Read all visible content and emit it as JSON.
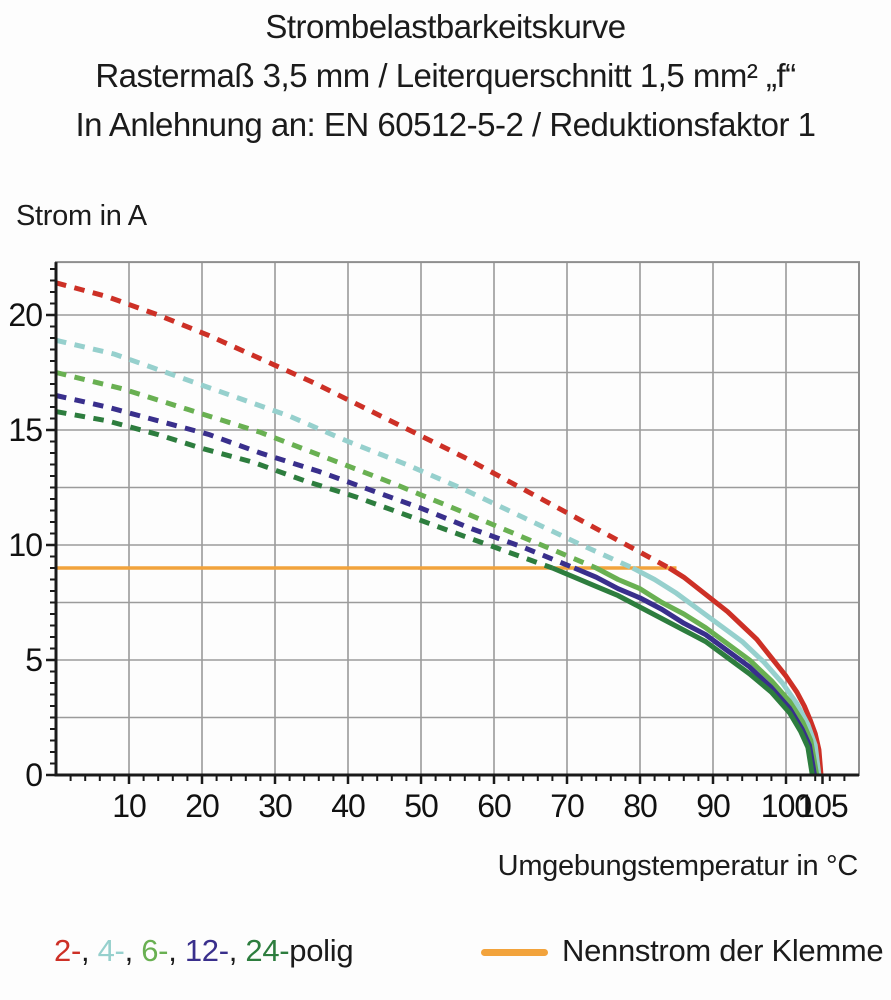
{
  "title": {
    "line1": "Strombelastbarkeitskurve",
    "line2": "Rastermaß 3,5 mm / Leiterquerschnitt 1,5 mm² „f“",
    "line3": "In Anlehnung an: EN 60512-5-2 / Reduktionsfaktor 1"
  },
  "axes": {
    "y_label": "Strom in A",
    "x_label": "Umgebungstemperatur in °C"
  },
  "legend": {
    "poles_parts": [
      {
        "text": "2-",
        "color": "#cd3026"
      },
      {
        "text": ", ",
        "color": "#1b1b1b"
      },
      {
        "text": "4-",
        "color": "#96d0cd"
      },
      {
        "text": ", ",
        "color": "#1b1b1b"
      },
      {
        "text": "6-",
        "color": "#69b052"
      },
      {
        "text": ", ",
        "color": "#1b1b1b"
      },
      {
        "text": "12-",
        "color": "#392f8c"
      },
      {
        "text": ", ",
        "color": "#1b1b1b"
      },
      {
        "text": "24-",
        "color": "#2d7d3e"
      },
      {
        "text": "polig",
        "color": "#1b1b1b"
      }
    ],
    "nominal_label": "Nennstrom der Klemme",
    "nominal_color": "#f2a33c"
  },
  "chart_data": {
    "type": "line",
    "title": "Strombelastbarkeitskurve",
    "xlabel": "Umgebungstemperatur in °C",
    "ylabel": "Strom in A",
    "xlim": [
      0,
      110
    ],
    "ylim": [
      0,
      22.3
    ],
    "x_major_ticks": [
      10,
      20,
      30,
      40,
      50,
      60,
      70,
      80,
      90,
      100,
      105
    ],
    "y_major_ticks": [
      0,
      5,
      10,
      15,
      20
    ],
    "x_gridlines": [
      10,
      20,
      30,
      40,
      50,
      60,
      70,
      80,
      90,
      100
    ],
    "y_gridlines": [
      2.5,
      5,
      7.5,
      10,
      12.5,
      15,
      17.5,
      20
    ],
    "x_minor_step": 2,
    "y_minor_step": 0.5,
    "grid_on": true,
    "grid_color": "#9b9b9b",
    "frame_color": "#8f8f8f",
    "axis_color": "#1a1a1a",
    "nominal_current": {
      "label": "Nennstrom der Klemme",
      "value": 9,
      "x_start": 0,
      "x_end": 85,
      "color": "#f2a33c"
    },
    "series": [
      {
        "name": "2-polig",
        "color": "#cd3026",
        "style": "dashed-then-solid",
        "dashed_points": [
          [
            0,
            21.4
          ],
          [
            7,
            20.8
          ],
          [
            14,
            20.0
          ],
          [
            21,
            19.1
          ],
          [
            28,
            18.1
          ],
          [
            35,
            17.1
          ],
          [
            42,
            16.0
          ],
          [
            49,
            14.9
          ],
          [
            56,
            13.8
          ],
          [
            63,
            12.6
          ],
          [
            70,
            11.4
          ],
          [
            77,
            10.2
          ],
          [
            84,
            9.0
          ]
        ],
        "solid_points": [
          [
            84,
            9.0
          ],
          [
            86,
            8.6
          ],
          [
            88,
            8.1
          ],
          [
            90,
            7.6
          ],
          [
            92,
            7.1
          ],
          [
            94,
            6.5
          ],
          [
            96,
            5.9
          ],
          [
            98,
            5.1
          ],
          [
            100,
            4.3
          ],
          [
            101.5,
            3.6
          ],
          [
            102.5,
            3.0
          ],
          [
            103.3,
            2.4
          ],
          [
            104,
            1.8
          ],
          [
            104.5,
            1.1
          ],
          [
            104.8,
            0
          ]
        ]
      },
      {
        "name": "4-polig",
        "color": "#96d0cd",
        "style": "dashed-then-solid",
        "dashed_points": [
          [
            0,
            18.9
          ],
          [
            8,
            18.3
          ],
          [
            16,
            17.4
          ],
          [
            24,
            16.5
          ],
          [
            32,
            15.6
          ],
          [
            40,
            14.5
          ],
          [
            48,
            13.5
          ],
          [
            56,
            12.4
          ],
          [
            64,
            11.2
          ],
          [
            72,
            10.0
          ],
          [
            79,
            9.0
          ]
        ],
        "solid_points": [
          [
            79,
            9.0
          ],
          [
            82,
            8.5
          ],
          [
            85,
            7.9
          ],
          [
            88,
            7.2
          ],
          [
            91,
            6.5
          ],
          [
            94,
            5.8
          ],
          [
            97,
            4.9
          ],
          [
            99.5,
            4.0
          ],
          [
            101.5,
            3.1
          ],
          [
            103,
            2.2
          ],
          [
            104,
            1.3
          ],
          [
            104.5,
            0
          ]
        ]
      },
      {
        "name": "6-polig",
        "color": "#69b052",
        "style": "dashed-then-solid",
        "dashed_points": [
          [
            0,
            17.5
          ],
          [
            9,
            16.8
          ],
          [
            18,
            15.9
          ],
          [
            28,
            14.9
          ],
          [
            37,
            13.8
          ],
          [
            46,
            12.7
          ],
          [
            56,
            11.4
          ],
          [
            65,
            10.2
          ],
          [
            74,
            9.0
          ]
        ],
        "solid_points": [
          [
            74,
            9.0
          ],
          [
            77,
            8.5
          ],
          [
            80,
            8.1
          ],
          [
            83,
            7.5
          ],
          [
            86,
            7.0
          ],
          [
            89,
            6.4
          ],
          [
            92,
            5.7
          ],
          [
            95,
            5.0
          ],
          [
            98,
            4.1
          ],
          [
            100.5,
            3.2
          ],
          [
            102.3,
            2.3
          ],
          [
            103.4,
            1.5
          ],
          [
            104.2,
            0
          ]
        ]
      },
      {
        "name": "12-polig",
        "color": "#392f8c",
        "style": "dashed-then-solid",
        "dashed_points": [
          [
            0,
            16.5
          ],
          [
            7,
            16.0
          ],
          [
            14,
            15.4
          ],
          [
            21,
            14.8
          ],
          [
            28,
            14.0
          ],
          [
            36,
            13.2
          ],
          [
            43,
            12.4
          ],
          [
            50,
            11.6
          ],
          [
            57,
            10.7
          ],
          [
            64,
            9.9
          ],
          [
            71,
            9.0
          ]
        ],
        "solid_points": [
          [
            71,
            9.0
          ],
          [
            74,
            8.6
          ],
          [
            77,
            8.1
          ],
          [
            80,
            7.7
          ],
          [
            83,
            7.2
          ],
          [
            86,
            6.6
          ],
          [
            89,
            6.1
          ],
          [
            92,
            5.4
          ],
          [
            95,
            4.7
          ],
          [
            98,
            3.8
          ],
          [
            100.5,
            2.9
          ],
          [
            102.2,
            2.0
          ],
          [
            103.2,
            1.3
          ],
          [
            103.9,
            0
          ]
        ]
      },
      {
        "name": "24-polig",
        "color": "#2d7d3e",
        "style": "dashed-then-solid",
        "dashed_points": [
          [
            0,
            15.8
          ],
          [
            7,
            15.4
          ],
          [
            14,
            14.8
          ],
          [
            20,
            14.2
          ],
          [
            27,
            13.6
          ],
          [
            34,
            12.8
          ],
          [
            41,
            12.1
          ],
          [
            48,
            11.3
          ],
          [
            54,
            10.6
          ],
          [
            61,
            9.8
          ],
          [
            68,
            9.0
          ]
        ],
        "solid_points": [
          [
            68,
            9.0
          ],
          [
            71,
            8.6
          ],
          [
            74,
            8.2
          ],
          [
            77,
            7.8
          ],
          [
            80,
            7.3
          ],
          [
            83,
            6.8
          ],
          [
            86,
            6.3
          ],
          [
            89,
            5.8
          ],
          [
            92,
            5.1
          ],
          [
            95,
            4.4
          ],
          [
            98,
            3.6
          ],
          [
            100.5,
            2.7
          ],
          [
            102,
            1.9
          ],
          [
            103,
            1.2
          ],
          [
            103.6,
            0
          ]
        ]
      }
    ]
  }
}
